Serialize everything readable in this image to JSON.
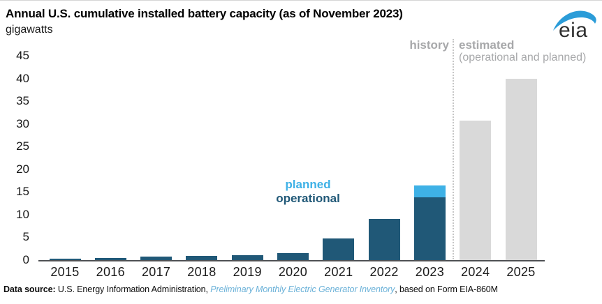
{
  "header": {
    "title": "Annual U.S. cumulative installed battery capacity (as of November 2023)",
    "subtitle": "gigawatts"
  },
  "logo": {
    "text": "eia",
    "swoosh_color": "#2b9cd8",
    "text_color": "#2f2f2f"
  },
  "annotations": {
    "history_label": "history",
    "estimated_label": "estimated",
    "estimated_sublabel": "(operational and planned)",
    "planned_label": "planned",
    "operational_label": "operational"
  },
  "colors": {
    "operational": "#205877",
    "planned": "#3eb1e6",
    "estimated": "#d9d9d9",
    "axis": "#4f5154",
    "muted_text": "#a7a8aa",
    "link": "#6ab1d8"
  },
  "footer": {
    "prefix_bold": "Data source:",
    "text_before_link": " U.S. Energy Information Administration, ",
    "link_text": "Preliminary Monthly Electric Generator Inventory",
    "text_after_link": ", based on Form EIA-860M"
  },
  "chart_data": {
    "type": "bar",
    "stacked": true,
    "title": "Annual U.S. cumulative installed battery capacity (as of November 2023)",
    "ylabel": "gigawatts",
    "categories": [
      "2015",
      "2016",
      "2017",
      "2018",
      "2019",
      "2020",
      "2021",
      "2022",
      "2023",
      "2024",
      "2025"
    ],
    "series": [
      {
        "name": "operational",
        "color": "#205877",
        "values": [
          0.3,
          0.5,
          0.8,
          0.9,
          1.1,
          1.5,
          4.8,
          9.0,
          13.8,
          0,
          0
        ]
      },
      {
        "name": "planned",
        "color": "#3eb1e6",
        "values": [
          0,
          0,
          0,
          0,
          0,
          0,
          0,
          0,
          2.6,
          0,
          0
        ]
      },
      {
        "name": "estimated (operational and planned)",
        "color": "#d9d9d9",
        "values": [
          0,
          0,
          0,
          0,
          0,
          0,
          0,
          0,
          0,
          30.7,
          39.9
        ]
      }
    ],
    "ylim": [
      0,
      45
    ],
    "yticks": [
      0,
      5,
      10,
      15,
      20,
      25,
      30,
      35,
      40,
      45
    ],
    "grid": false,
    "legend": "inline text annotations (planned / operational)",
    "divider_between": [
      "2023",
      "2024"
    ],
    "history_years": [
      "2015",
      "2016",
      "2017",
      "2018",
      "2019",
      "2020",
      "2021",
      "2022",
      "2023"
    ],
    "estimated_years": [
      "2024",
      "2025"
    ]
  }
}
